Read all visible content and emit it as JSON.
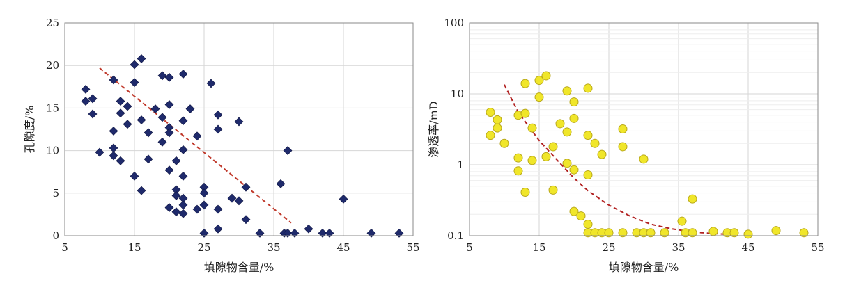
{
  "chart_data": [
    {
      "type": "scatter",
      "xlabel": "填隙物含量/%",
      "ylabel": "孔隙度/%",
      "xlim": [
        5,
        55
      ],
      "ylim": [
        0,
        25
      ],
      "x_ticks": [
        "5",
        "15",
        "25",
        "35",
        "45",
        "55"
      ],
      "y_ticks": [
        "0",
        "5",
        "10",
        "15",
        "20",
        "25"
      ],
      "grid": true,
      "marker": "diamond",
      "marker_color": "#1f2a6b",
      "trend_color": "#c0392b",
      "trend": [
        [
          10,
          19.7
        ],
        [
          37.5,
          1.5
        ]
      ],
      "points": [
        [
          8,
          17.2
        ],
        [
          8,
          15.8
        ],
        [
          9,
          16.1
        ],
        [
          9,
          14.3
        ],
        [
          10,
          9.8
        ],
        [
          12,
          18.3
        ],
        [
          12,
          12.3
        ],
        [
          12,
          10.3
        ],
        [
          12,
          9.4
        ],
        [
          13,
          15.8
        ],
        [
          13,
          14.4
        ],
        [
          13,
          8.8
        ],
        [
          14,
          15.2
        ],
        [
          14,
          13.1
        ],
        [
          15,
          20.1
        ],
        [
          15,
          18.0
        ],
        [
          15,
          7.0
        ],
        [
          16,
          20.8
        ],
        [
          16,
          13.6
        ],
        [
          16,
          5.3
        ],
        [
          17,
          12.1
        ],
        [
          17,
          9.0
        ],
        [
          18,
          14.9
        ],
        [
          19,
          18.8
        ],
        [
          19,
          13.9
        ],
        [
          19,
          11.0
        ],
        [
          20,
          18.6
        ],
        [
          20,
          15.4
        ],
        [
          20,
          12.7
        ],
        [
          20,
          12.1
        ],
        [
          20,
          7.7
        ],
        [
          20,
          3.3
        ],
        [
          21,
          8.8
        ],
        [
          21,
          5.4
        ],
        [
          21,
          4.7
        ],
        [
          21,
          2.8
        ],
        [
          22,
          19.0
        ],
        [
          22,
          13.5
        ],
        [
          22,
          10.1
        ],
        [
          22,
          7.0
        ],
        [
          22,
          4.4
        ],
        [
          22,
          3.6
        ],
        [
          22,
          2.6
        ],
        [
          23,
          14.9
        ],
        [
          24,
          11.7
        ],
        [
          24,
          3.1
        ],
        [
          25,
          5.7
        ],
        [
          25,
          5.0
        ],
        [
          25,
          3.6
        ],
        [
          25,
          0.3
        ],
        [
          26,
          17.9
        ],
        [
          27,
          14.2
        ],
        [
          27,
          12.5
        ],
        [
          27,
          3.1
        ],
        [
          27,
          0.8
        ],
        [
          29,
          4.4
        ],
        [
          30,
          13.4
        ],
        [
          30,
          4.1
        ],
        [
          31,
          5.7
        ],
        [
          31,
          1.9
        ],
        [
          33,
          0.3
        ],
        [
          36,
          6.1
        ],
        [
          36.5,
          0.3
        ],
        [
          37,
          10.0
        ],
        [
          37,
          0.3
        ],
        [
          38,
          0.3
        ],
        [
          40,
          0.8
        ],
        [
          42,
          0.3
        ],
        [
          43,
          0.3
        ],
        [
          45,
          4.3
        ],
        [
          49,
          0.3
        ],
        [
          53,
          0.3
        ]
      ]
    },
    {
      "type": "scatter",
      "xlabel": "填隙物含量/%",
      "ylabel": "渗透率/mD",
      "xlim": [
        5,
        55
      ],
      "ylim": [
        0.1,
        100
      ],
      "log_y": true,
      "x_ticks": [
        "5",
        "15",
        "25",
        "35",
        "45",
        "55"
      ],
      "y_ticks": [
        "0.1",
        "1",
        "10",
        "100"
      ],
      "grid": true,
      "marker": "circle",
      "marker_color": "#f0e62a",
      "trend_color": "#b22222",
      "trend": [
        [
          10,
          13.5
        ],
        [
          12,
          5.5
        ],
        [
          15,
          2.2
        ],
        [
          18,
          1.05
        ],
        [
          20,
          0.65
        ],
        [
          22,
          0.43
        ],
        [
          25,
          0.27
        ],
        [
          28,
          0.19
        ],
        [
          31,
          0.145
        ],
        [
          34,
          0.125
        ],
        [
          37,
          0.113
        ],
        [
          40,
          0.107
        ],
        [
          43,
          0.104
        ]
      ],
      "points": [
        [
          8,
          5.5
        ],
        [
          8,
          2.6
        ],
        [
          9,
          4.3
        ],
        [
          9,
          3.3
        ],
        [
          10,
          2.0
        ],
        [
          12,
          5.0
        ],
        [
          12,
          1.25
        ],
        [
          12,
          0.82
        ],
        [
          13,
          14.0
        ],
        [
          13,
          5.3
        ],
        [
          13,
          0.41
        ],
        [
          14,
          3.3
        ],
        [
          14,
          1.15
        ],
        [
          15,
          15.5
        ],
        [
          15,
          9.0
        ],
        [
          16,
          18.0
        ],
        [
          16,
          1.3
        ],
        [
          17,
          1.8
        ],
        [
          17,
          0.44
        ],
        [
          18,
          3.8
        ],
        [
          19,
          11.0
        ],
        [
          19,
          2.9
        ],
        [
          19,
          1.05
        ],
        [
          20,
          7.7
        ],
        [
          20,
          4.5
        ],
        [
          20,
          0.85
        ],
        [
          20,
          0.22
        ],
        [
          21,
          0.19
        ],
        [
          22,
          12.0
        ],
        [
          22,
          2.6
        ],
        [
          22,
          0.72
        ],
        [
          22,
          0.145
        ],
        [
          22,
          0.11
        ],
        [
          23,
          2.0
        ],
        [
          23,
          0.11
        ],
        [
          24,
          1.4
        ],
        [
          24,
          0.11
        ],
        [
          25,
          0.11
        ],
        [
          27,
          3.2
        ],
        [
          27,
          1.8
        ],
        [
          27,
          0.11
        ],
        [
          29,
          0.11
        ],
        [
          30,
          1.2
        ],
        [
          30,
          0.11
        ],
        [
          31,
          0.11
        ],
        [
          33,
          0.11
        ],
        [
          35.5,
          0.16
        ],
        [
          36,
          0.11
        ],
        [
          37,
          0.33
        ],
        [
          37,
          0.11
        ],
        [
          40,
          0.115
        ],
        [
          42,
          0.11
        ],
        [
          43,
          0.11
        ],
        [
          45,
          0.105
        ],
        [
          49,
          0.118
        ],
        [
          53,
          0.11
        ]
      ]
    }
  ]
}
